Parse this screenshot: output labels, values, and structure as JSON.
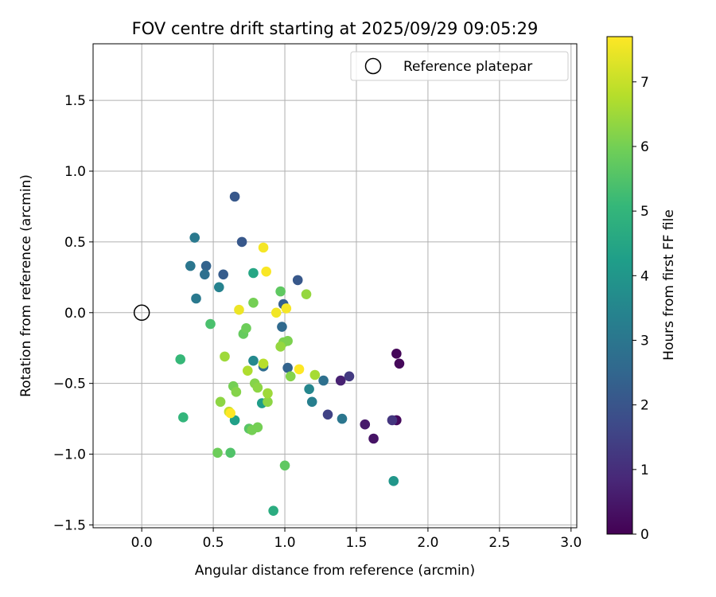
{
  "chart_data": {
    "type": "scatter",
    "title": "FOV centre drift starting at 2025/09/29 09:05:29",
    "xlabel": "Angular distance from reference (arcmin)",
    "ylabel": "Rotation from reference (arcmin)",
    "xlim": [
      -0.34,
      3.04
    ],
    "ylim": [
      -1.52,
      1.9
    ],
    "xticks": [
      0.0,
      0.5,
      1.0,
      1.5,
      2.0,
      2.5,
      3.0
    ],
    "xtick_labels": [
      "0.0",
      "0.5",
      "1.0",
      "1.5",
      "2.0",
      "2.5",
      "3.0"
    ],
    "yticks": [
      -1.5,
      -1.0,
      -0.5,
      0.0,
      0.5,
      1.0,
      1.5
    ],
    "ytick_labels": [
      "−1.5",
      "−1.0",
      "−0.5",
      "0.0",
      "0.5",
      "1.0",
      "1.5"
    ],
    "grid": true,
    "legend": {
      "position": "top-right",
      "entries": [
        "Reference platepar"
      ]
    },
    "reference_point": {
      "x": 0.0,
      "y": 0.0,
      "label": "Reference platepar"
    },
    "colorbar": {
      "label": "Hours from first FF file",
      "range": [
        0,
        7.7
      ],
      "ticks": [
        0,
        1,
        2,
        3,
        4,
        5,
        6,
        7
      ],
      "tick_labels": [
        "0",
        "1",
        "2",
        "3",
        "4",
        "5",
        "6",
        "7"
      ],
      "colormap": "viridis"
    },
    "points": [
      {
        "x": 1.78,
        "y": -0.29,
        "hours": 0.1
      },
      {
        "x": 1.8,
        "y": -0.36,
        "hours": 0.15
      },
      {
        "x": 1.78,
        "y": -0.76,
        "hours": 0.2
      },
      {
        "x": 1.62,
        "y": -0.89,
        "hours": 0.4
      },
      {
        "x": 1.56,
        "y": -0.79,
        "hours": 0.55
      },
      {
        "x": 1.39,
        "y": -0.48,
        "hours": 0.7
      },
      {
        "x": 1.75,
        "y": -0.76,
        "hours": 1.2
      },
      {
        "x": 1.45,
        "y": -0.45,
        "hours": 1.3
      },
      {
        "x": 1.3,
        "y": -0.72,
        "hours": 1.5
      },
      {
        "x": 0.65,
        "y": 0.82,
        "hours": 2.1
      },
      {
        "x": 0.7,
        "y": 0.5,
        "hours": 2.1
      },
      {
        "x": 1.09,
        "y": 0.23,
        "hours": 2.1
      },
      {
        "x": 0.57,
        "y": 0.27,
        "hours": 2.2
      },
      {
        "x": 0.99,
        "y": 0.06,
        "hours": 2.3
      },
      {
        "x": 0.45,
        "y": 0.33,
        "hours": 2.4
      },
      {
        "x": 1.02,
        "y": -0.39,
        "hours": 2.4
      },
      {
        "x": 0.98,
        "y": -0.1,
        "hours": 2.6
      },
      {
        "x": 0.85,
        "y": -0.38,
        "hours": 2.7
      },
      {
        "x": 0.44,
        "y": 0.27,
        "hours": 2.8
      },
      {
        "x": 1.27,
        "y": -0.48,
        "hours": 2.8
      },
      {
        "x": 0.34,
        "y": 0.33,
        "hours": 3.0
      },
      {
        "x": 1.4,
        "y": -0.75,
        "hours": 3.0
      },
      {
        "x": 0.37,
        "y": 0.53,
        "hours": 3.1
      },
      {
        "x": 0.38,
        "y": 0.1,
        "hours": 3.1
      },
      {
        "x": 1.19,
        "y": -0.63,
        "hours": 3.3
      },
      {
        "x": 0.54,
        "y": 0.18,
        "hours": 3.4
      },
      {
        "x": 1.17,
        "y": -0.54,
        "hours": 3.5
      },
      {
        "x": 0.78,
        "y": -0.34,
        "hours": 3.6
      },
      {
        "x": 1.76,
        "y": -1.19,
        "hours": 4.0
      },
      {
        "x": 0.84,
        "y": -0.64,
        "hours": 4.2
      },
      {
        "x": 0.65,
        "y": -0.76,
        "hours": 4.3
      },
      {
        "x": 0.78,
        "y": 0.28,
        "hours": 4.5
      },
      {
        "x": 0.92,
        "y": -1.4,
        "hours": 4.7
      },
      {
        "x": 0.29,
        "y": -0.74,
        "hours": 5.0
      },
      {
        "x": 0.27,
        "y": -0.33,
        "hours": 5.1
      },
      {
        "x": 0.48,
        "y": -0.08,
        "hours": 5.4
      },
      {
        "x": 0.62,
        "y": -0.99,
        "hours": 5.5
      },
      {
        "x": 0.75,
        "y": -0.82,
        "hours": 5.6
      },
      {
        "x": 0.97,
        "y": 0.15,
        "hours": 5.7
      },
      {
        "x": 1.0,
        "y": -1.08,
        "hours": 5.7
      },
      {
        "x": 0.71,
        "y": -0.15,
        "hours": 5.8
      },
      {
        "x": 0.73,
        "y": -0.11,
        "hours": 5.9
      },
      {
        "x": 0.53,
        "y": -0.99,
        "hours": 5.9
      },
      {
        "x": 0.78,
        "y": 0.07,
        "hours": 6.0
      },
      {
        "x": 0.81,
        "y": -0.81,
        "hours": 6.0
      },
      {
        "x": 0.77,
        "y": -0.83,
        "hours": 6.0
      },
      {
        "x": 0.64,
        "y": -0.52,
        "hours": 6.0
      },
      {
        "x": 0.99,
        "y": -0.21,
        "hours": 6.1
      },
      {
        "x": 1.02,
        "y": -0.2,
        "hours": 6.1
      },
      {
        "x": 0.66,
        "y": -0.56,
        "hours": 6.2
      },
      {
        "x": 1.04,
        "y": -0.45,
        "hours": 6.2
      },
      {
        "x": 0.79,
        "y": -0.5,
        "hours": 6.2
      },
      {
        "x": 0.81,
        "y": -0.53,
        "hours": 6.3
      },
      {
        "x": 0.55,
        "y": -0.63,
        "hours": 6.3
      },
      {
        "x": 0.88,
        "y": -0.63,
        "hours": 6.3
      },
      {
        "x": 0.97,
        "y": -0.24,
        "hours": 6.4
      },
      {
        "x": 1.15,
        "y": 0.13,
        "hours": 6.4
      },
      {
        "x": 0.88,
        "y": -0.57,
        "hours": 6.5
      },
      {
        "x": 0.58,
        "y": -0.31,
        "hours": 6.5
      },
      {
        "x": 1.21,
        "y": -0.44,
        "hours": 6.6
      },
      {
        "x": 0.74,
        "y": -0.41,
        "hours": 6.7
      },
      {
        "x": 0.85,
        "y": -0.36,
        "hours": 6.8
      },
      {
        "x": 0.61,
        "y": -0.7,
        "hours": 7.0
      },
      {
        "x": 0.68,
        "y": 0.02,
        "hours": 7.5
      },
      {
        "x": 0.94,
        "y": 0.0,
        "hours": 7.55
      },
      {
        "x": 1.01,
        "y": 0.03,
        "hours": 7.6
      },
      {
        "x": 0.85,
        "y": 0.46,
        "hours": 7.6
      },
      {
        "x": 0.87,
        "y": 0.29,
        "hours": 7.65
      },
      {
        "x": 1.1,
        "y": -0.4,
        "hours": 7.7
      },
      {
        "x": 0.62,
        "y": -0.71,
        "hours": 7.7
      }
    ]
  }
}
